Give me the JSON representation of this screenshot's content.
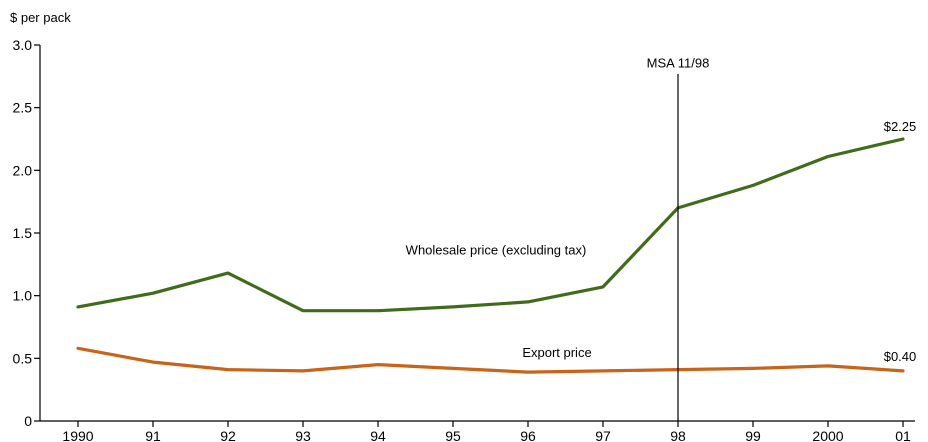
{
  "chart_data": {
    "type": "line",
    "title": "",
    "xlabel": "",
    "ylabel": "$ per pack",
    "categories": [
      "1990",
      "91",
      "92",
      "93",
      "94",
      "95",
      "96",
      "97",
      "98",
      "99",
      "2000",
      "01"
    ],
    "ylim": [
      0,
      3.0
    ],
    "yticks": [
      "0",
      "0.5",
      "1.0",
      "1.5",
      "2.0",
      "2.5",
      "3.0"
    ],
    "grid": false,
    "series": [
      {
        "name": "Wholesale price (excluding tax)",
        "color": "#3f6b1a",
        "values": [
          0.91,
          1.02,
          1.18,
          0.88,
          0.88,
          0.91,
          0.95,
          1.07,
          1.7,
          1.88,
          2.11,
          2.25
        ]
      },
      {
        "name": "Export price",
        "color": "#c8641a",
        "values": [
          0.58,
          0.47,
          0.41,
          0.4,
          0.45,
          0.42,
          0.39,
          0.4,
          0.41,
          0.42,
          0.44,
          0.4
        ]
      }
    ],
    "annotations": {
      "msa_label": "MSA 11/98",
      "msa_category": "98",
      "end_label_wholesale": "$2.25",
      "end_label_export": "$0.40"
    }
  }
}
